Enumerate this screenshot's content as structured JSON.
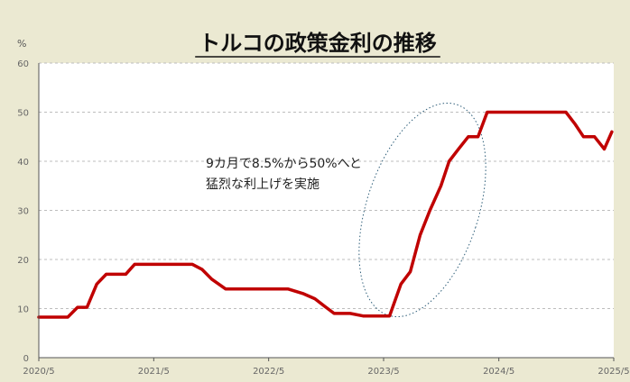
{
  "chart_data": {
    "type": "line",
    "title": "トルコの政策金利の推移",
    "ylabel": "%",
    "xlabel": "",
    "ylim": [
      0,
      60
    ],
    "yticks": [
      0,
      10,
      20,
      30,
      40,
      50,
      60
    ],
    "xlim": [
      "2020-05",
      "2025-05"
    ],
    "xticks": [
      "2020/5",
      "2021/5",
      "2022/5",
      "2023/5",
      "2024/5",
      "2025/5"
    ],
    "grid": true,
    "line_color": "#c00000",
    "annotation": {
      "lines": [
        "9カ月で8.5%から50%へと",
        "猛烈な利上げを実施"
      ]
    },
    "series": [
      {
        "points": [
          {
            "x": "2020-05-01",
            "y": 8.25
          },
          {
            "x": "2020-05-20",
            "y": 8.25
          },
          {
            "x": "2020-08-01",
            "y": 8.25
          },
          {
            "x": "2020-09-01",
            "y": 10.25
          },
          {
            "x": "2020-10-01",
            "y": 10.25
          },
          {
            "x": "2020-11-01",
            "y": 15.0
          },
          {
            "x": "2020-12-01",
            "y": 17.0
          },
          {
            "x": "2021-02-01",
            "y": 17.0
          },
          {
            "x": "2021-03-01",
            "y": 19.0
          },
          {
            "x": "2021-09-01",
            "y": 19.0
          },
          {
            "x": "2021-10-01",
            "y": 18.0
          },
          {
            "x": "2021-11-01",
            "y": 16.0
          },
          {
            "x": "2021-12-15",
            "y": 14.0
          },
          {
            "x": "2022-07-01",
            "y": 14.0
          },
          {
            "x": "2022-08-20",
            "y": 13.0
          },
          {
            "x": "2022-09-25",
            "y": 12.0
          },
          {
            "x": "2022-10-25",
            "y": 10.5
          },
          {
            "x": "2022-11-25",
            "y": 9.0
          },
          {
            "x": "2023-01-15",
            "y": 9.0
          },
          {
            "x": "2023-02-25",
            "y": 8.5
          },
          {
            "x": "2023-05-20",
            "y": 8.5
          },
          {
            "x": "2023-06-25",
            "y": 15.0
          },
          {
            "x": "2023-07-25",
            "y": 17.5
          },
          {
            "x": "2023-08-25",
            "y": 25.0
          },
          {
            "x": "2023-09-25",
            "y": 30.0
          },
          {
            "x": "2023-10-30",
            "y": 35.0
          },
          {
            "x": "2023-11-25",
            "y": 40.0
          },
          {
            "x": "2023-12-25",
            "y": 42.5
          },
          {
            "x": "2024-01-25",
            "y": 45.0
          },
          {
            "x": "2024-02-25",
            "y": 45.0
          },
          {
            "x": "2024-03-25",
            "y": 50.0
          },
          {
            "x": "2024-11-30",
            "y": 50.0
          },
          {
            "x": "2024-12-30",
            "y": 47.5
          },
          {
            "x": "2025-01-25",
            "y": 45.0
          },
          {
            "x": "2025-03-01",
            "y": 45.0
          },
          {
            "x": "2025-04-01",
            "y": 42.5
          },
          {
            "x": "2025-04-25",
            "y": 46.0
          }
        ]
      }
    ]
  }
}
